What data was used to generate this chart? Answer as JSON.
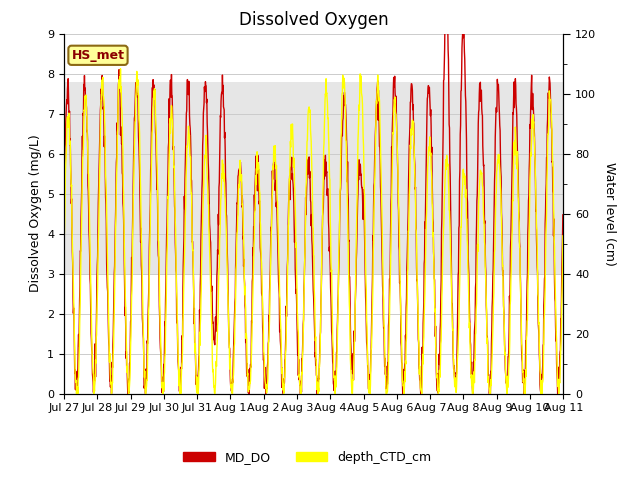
{
  "title": "Dissolved Oxygen",
  "ylabel_left": "Dissolved Oxygen (mg/L)",
  "ylabel_right": "Water level (cm)",
  "ylim_left": [
    0.0,
    9.0
  ],
  "ylim_right": [
    0,
    120
  ],
  "yticks_left": [
    0.0,
    1.0,
    2.0,
    3.0,
    4.0,
    5.0,
    6.0,
    7.0,
    8.0,
    9.0
  ],
  "yticks_right": [
    0,
    20,
    40,
    60,
    80,
    100,
    120
  ],
  "shaded_band": [
    3.0,
    7.8
  ],
  "annotation_text": "HS_met",
  "annotation_color": "#8B0000",
  "annotation_bg": "#FFFF99",
  "annotation_border": "#8B6914",
  "line_MD_DO_color": "#CC0000",
  "line_depth_CTD_color": "#FFFF00",
  "line_width": 1.0,
  "legend_MD_DO": "MD_DO",
  "legend_depth_CTD": "depth_CTD_cm",
  "background_color": "#ffffff",
  "grid_color": "#cccccc",
  "title_fontsize": 12,
  "axis_fontsize": 9,
  "tick_fontsize": 8
}
